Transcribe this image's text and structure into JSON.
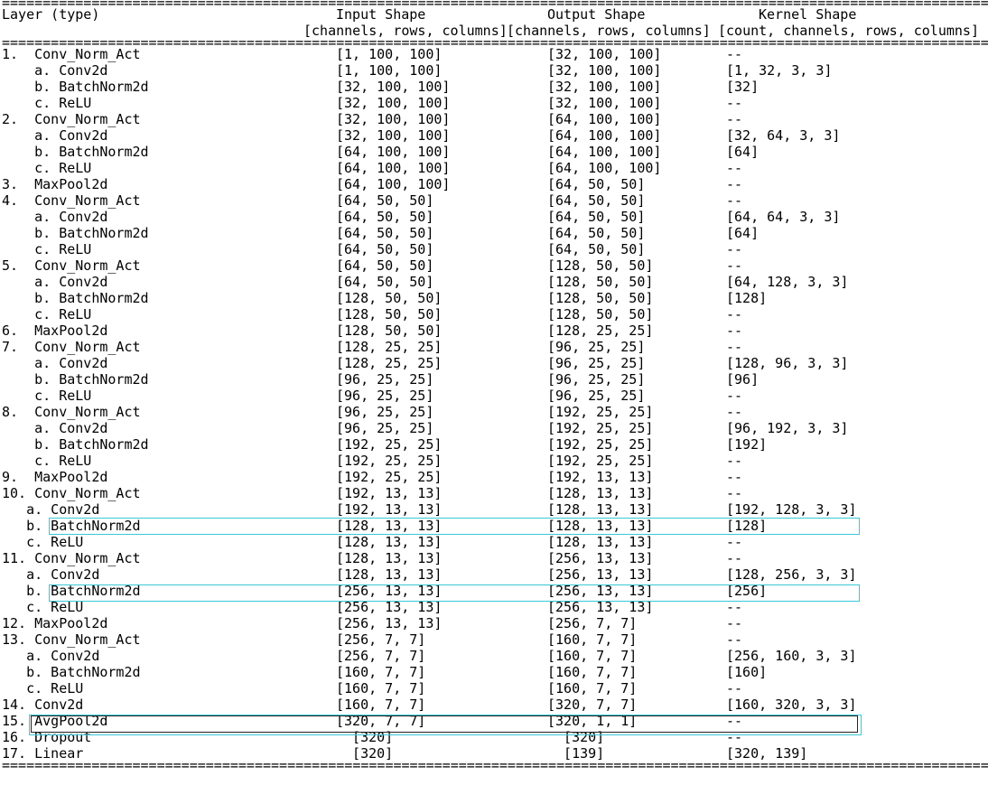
{
  "rules": {
    "double": "============================================================================================================================"
  },
  "header": {
    "layer_label": "Layer (type)",
    "input_label": "Input Shape",
    "output_label": "Output Shape",
    "kernel_label": "Kernel Shape",
    "input_sub": "[channels, rows, columns]",
    "output_sub": "[channels, rows, columns]",
    "kernel_sub": "[count, channels, rows, columns]"
  },
  "rows": [
    {
      "layer": "1.  Conv_Norm_Act",
      "input": "[1, 100, 100]",
      "output": "[32, 100, 100]",
      "kernel": "--"
    },
    {
      "layer": "    a. Conv2d",
      "input": "[1, 100, 100]",
      "output": "[32, 100, 100]",
      "kernel": "[1, 32, 3, 3]"
    },
    {
      "layer": "    b. BatchNorm2d",
      "input": "[32, 100, 100]",
      "output": "[32, 100, 100]",
      "kernel": "[32]"
    },
    {
      "layer": "    c. ReLU",
      "input": "[32, 100, 100]",
      "output": "[32, 100, 100]",
      "kernel": "--"
    },
    {
      "layer": "2.  Conv_Norm_Act",
      "input": "[32, 100, 100]",
      "output": "[64, 100, 100]",
      "kernel": "--"
    },
    {
      "layer": "    a. Conv2d",
      "input": "[32, 100, 100]",
      "output": "[64, 100, 100]",
      "kernel": "[32, 64, 3, 3]"
    },
    {
      "layer": "    b. BatchNorm2d",
      "input": "[64, 100, 100]",
      "output": "[64, 100, 100]",
      "kernel": "[64]"
    },
    {
      "layer": "    c. ReLU",
      "input": "[64, 100, 100]",
      "output": "[64, 100, 100]",
      "kernel": "--"
    },
    {
      "layer": "3.  MaxPool2d",
      "input": "[64, 100, 100]",
      "output": "[64, 50, 50]",
      "kernel": "--"
    },
    {
      "layer": "4.  Conv_Norm_Act",
      "input": "[64, 50, 50]",
      "output": "[64, 50, 50]",
      "kernel": "--"
    },
    {
      "layer": "    a. Conv2d",
      "input": "[64, 50, 50]",
      "output": "[64, 50, 50]",
      "kernel": "[64, 64, 3, 3]"
    },
    {
      "layer": "    b. BatchNorm2d",
      "input": "[64, 50, 50]",
      "output": "[64, 50, 50]",
      "kernel": "[64]"
    },
    {
      "layer": "    c. ReLU",
      "input": "[64, 50, 50]",
      "output": "[64, 50, 50]",
      "kernel": "--"
    },
    {
      "layer": "5.  Conv_Norm_Act",
      "input": "[64, 50, 50]",
      "output": "[128, 50, 50]",
      "kernel": "--"
    },
    {
      "layer": "    a. Conv2d",
      "input": "[64, 50, 50]",
      "output": "[128, 50, 50]",
      "kernel": "[64, 128, 3, 3]"
    },
    {
      "layer": "    b. BatchNorm2d",
      "input": "[128, 50, 50]",
      "output": "[128, 50, 50]",
      "kernel": "[128]"
    },
    {
      "layer": "    c. ReLU",
      "input": "[128, 50, 50]",
      "output": "[128, 50, 50]",
      "kernel": "--"
    },
    {
      "layer": "6.  MaxPool2d",
      "input": "[128, 50, 50]",
      "output": "[128, 25, 25]",
      "kernel": "--"
    },
    {
      "layer": "7.  Conv_Norm_Act",
      "input": "[128, 25, 25]",
      "output": "[96, 25, 25]",
      "kernel": "--"
    },
    {
      "layer": "    a. Conv2d",
      "input": "[128, 25, 25]",
      "output": "[96, 25, 25]",
      "kernel": "[128, 96, 3, 3]"
    },
    {
      "layer": "    b. BatchNorm2d",
      "input": "[96, 25, 25]",
      "output": "[96, 25, 25]",
      "kernel": "[96]"
    },
    {
      "layer": "    c. ReLU",
      "input": "[96, 25, 25]",
      "output": "[96, 25, 25]",
      "kernel": "--"
    },
    {
      "layer": "8.  Conv_Norm_Act",
      "input": "[96, 25, 25]",
      "output": "[192, 25, 25]",
      "kernel": "--"
    },
    {
      "layer": "    a. Conv2d",
      "input": "[96, 25, 25]",
      "output": "[192, 25, 25]",
      "kernel": "[96, 192, 3, 3]"
    },
    {
      "layer": "    b. BatchNorm2d",
      "input": "[192, 25, 25]",
      "output": "[192, 25, 25]",
      "kernel": "[192]"
    },
    {
      "layer": "    c. ReLU",
      "input": "[192, 25, 25]",
      "output": "[192, 25, 25]",
      "kernel": "--"
    },
    {
      "layer": "9.  MaxPool2d",
      "input": "[192, 25, 25]",
      "output": "[192, 13, 13]",
      "kernel": "--"
    },
    {
      "layer": "10. Conv_Norm_Act",
      "input": "[192, 13, 13]",
      "output": "[128, 13, 13]",
      "kernel": "--"
    },
    {
      "layer": "   a. Conv2d",
      "input": "[192, 13, 13]",
      "output": "[128, 13, 13]",
      "kernel": "[192, 128, 3, 3]"
    },
    {
      "layer": "   b. BatchNorm2d",
      "input": "[128, 13, 13]",
      "output": "[128, 13, 13]",
      "kernel": "[128]"
    },
    {
      "layer": "   c. ReLU",
      "input": "[128, 13, 13]",
      "output": "[128, 13, 13]",
      "kernel": "--"
    },
    {
      "layer": "11. Conv_Norm_Act",
      "input": "[128, 13, 13]",
      "output": "[256, 13, 13]",
      "kernel": "--"
    },
    {
      "layer": "   a. Conv2d",
      "input": "[128, 13, 13]",
      "output": "[256, 13, 13]",
      "kernel": "[128, 256, 3, 3]"
    },
    {
      "layer": "   b. BatchNorm2d",
      "input": "[256, 13, 13]",
      "output": "[256, 13, 13]",
      "kernel": "[256]"
    },
    {
      "layer": "   c. ReLU",
      "input": "[256, 13, 13]",
      "output": "[256, 13, 13]",
      "kernel": "--"
    },
    {
      "layer": "12. MaxPool2d",
      "input": "[256, 13, 13]",
      "output": "[256, 7, 7]",
      "kernel": "--"
    },
    {
      "layer": "13. Conv_Norm_Act",
      "input": "[256, 7, 7]",
      "output": "[160, 7, 7]",
      "kernel": "--"
    },
    {
      "layer": "   a. Conv2d",
      "input": "[256, 7, 7]",
      "output": "[160, 7, 7]",
      "kernel": "[256, 160, 3, 3]"
    },
    {
      "layer": "   b. BatchNorm2d",
      "input": "[160, 7, 7]",
      "output": "[160, 7, 7]",
      "kernel": "[160]"
    },
    {
      "layer": "   c. ReLU",
      "input": "[160, 7, 7]",
      "output": "[160, 7, 7]",
      "kernel": "--"
    },
    {
      "layer": "14. Conv2d",
      "input": "[160, 7, 7]",
      "output": "[320, 7, 7]",
      "kernel": "[160, 320, 3, 3]"
    },
    {
      "layer": "15. AvgPool2d",
      "input": "[320, 7, 7]",
      "output": "[320, 1, 1]",
      "kernel": "--"
    },
    {
      "layer": "16. Dropout",
      "input": "  [320]",
      "output": "  [320]",
      "kernel": "--"
    },
    {
      "layer": "17. Linear",
      "input": "  [320]",
      "output": "  [139]",
      "kernel": "[320, 139]"
    }
  ],
  "highlight_color": "#38c8d6"
}
